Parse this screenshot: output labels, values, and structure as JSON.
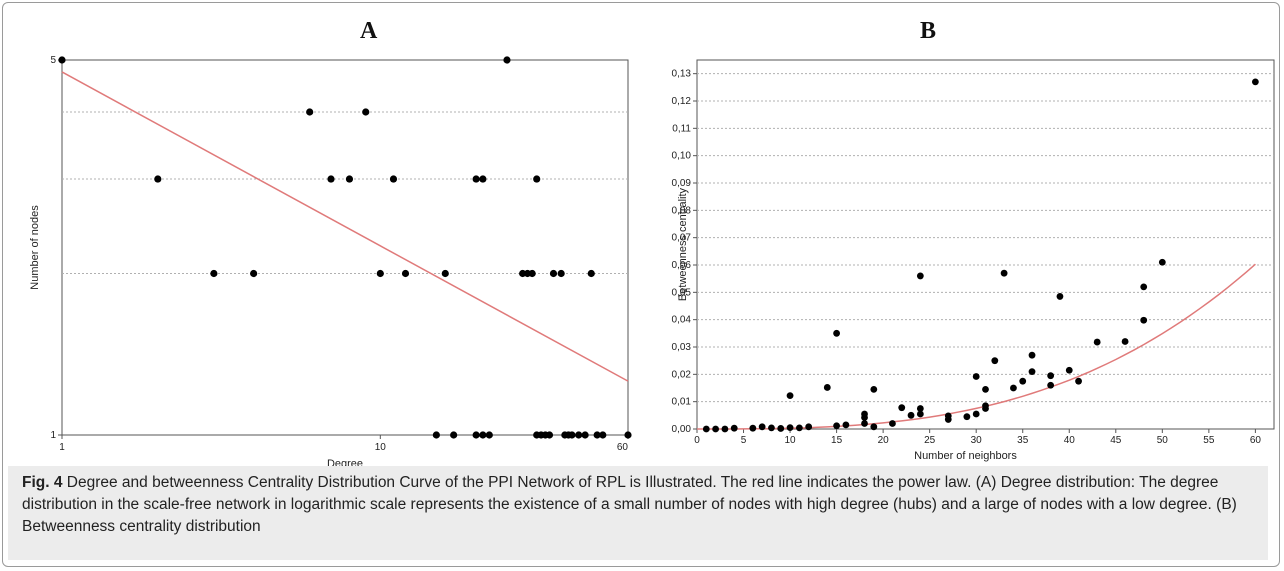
{
  "figure": {
    "panel_a_letter": "A",
    "panel_b_letter": "B",
    "caption_label": "Fig. 4",
    "caption_text": " Degree and betweenness Centrality Distribution Curve of the PPI Network of RPL is Illustrated. The red line indicates the power law. (A) Degree distribution: The degree distribution in the scale-free network in logarithmic scale represents the existence of a small number of nodes with high degree (hubs) and a large of nodes with a low degree. (B) Betweenness centrality distribution"
  },
  "colors": {
    "point": "#000000",
    "fit_line": "#e07a7a",
    "grid": "#b0b0b0",
    "axis": "#555555"
  },
  "chart_data": [
    {
      "type": "scatter",
      "panel": "A",
      "xlabel": "Degree",
      "ylabel": "Number of nodes",
      "x_scale": "log",
      "y_scale": "log",
      "xlim": [
        1,
        60
      ],
      "ylim": [
        1,
        5
      ],
      "x_ticks": [
        1,
        10,
        60
      ],
      "y_ticks": [
        1,
        5
      ],
      "grid": "horizontal dotted",
      "points": [
        {
          "x": 1,
          "y": 5
        },
        {
          "x": 2,
          "y": 3
        },
        {
          "x": 3,
          "y": 2
        },
        {
          "x": 4,
          "y": 2
        },
        {
          "x": 6,
          "y": 4
        },
        {
          "x": 7,
          "y": 3
        },
        {
          "x": 8,
          "y": 3
        },
        {
          "x": 9,
          "y": 4
        },
        {
          "x": 10,
          "y": 2
        },
        {
          "x": 11,
          "y": 3
        },
        {
          "x": 12,
          "y": 2
        },
        {
          "x": 15,
          "y": 1
        },
        {
          "x": 16,
          "y": 2
        },
        {
          "x": 17,
          "y": 1
        },
        {
          "x": 20,
          "y": 1
        },
        {
          "x": 20,
          "y": 3
        },
        {
          "x": 21,
          "y": 1
        },
        {
          "x": 21,
          "y": 3
        },
        {
          "x": 22,
          "y": 1
        },
        {
          "x": 25,
          "y": 5
        },
        {
          "x": 28,
          "y": 2
        },
        {
          "x": 29,
          "y": 2
        },
        {
          "x": 30,
          "y": 2
        },
        {
          "x": 31,
          "y": 3
        },
        {
          "x": 31,
          "y": 1
        },
        {
          "x": 32,
          "y": 1
        },
        {
          "x": 33,
          "y": 1
        },
        {
          "x": 34,
          "y": 1
        },
        {
          "x": 35,
          "y": 2
        },
        {
          "x": 37,
          "y": 2
        },
        {
          "x": 38,
          "y": 1
        },
        {
          "x": 39,
          "y": 1
        },
        {
          "x": 40,
          "y": 1
        },
        {
          "x": 42,
          "y": 1
        },
        {
          "x": 44,
          "y": 1
        },
        {
          "x": 46,
          "y": 2
        },
        {
          "x": 48,
          "y": 1
        },
        {
          "x": 50,
          "y": 1
        },
        {
          "x": 60,
          "y": 1
        }
      ],
      "fit_line": {
        "x": [
          1,
          60
        ],
        "y": [
          4.75,
          1.26
        ]
      }
    },
    {
      "type": "scatter",
      "panel": "B",
      "xlabel": "Number of neighbors",
      "ylabel": "Betweenness centrality",
      "xlim": [
        0,
        62
      ],
      "ylim": [
        0,
        0.135
      ],
      "x_ticks": [
        0,
        5,
        10,
        15,
        20,
        25,
        30,
        35,
        40,
        45,
        50,
        55,
        60
      ],
      "y_ticks": [
        0,
        0.01,
        0.02,
        0.03,
        0.04,
        0.05,
        0.06,
        0.07,
        0.08,
        0.09,
        0.1,
        0.11,
        0.12,
        0.13
      ],
      "y_tick_labels": [
        "0,00",
        "0,01",
        "0,02",
        "0,03",
        "0,04",
        "0,05",
        "0,06",
        "0,07",
        "0,08",
        "0,09",
        "0,10",
        "0,11",
        "0,12",
        "0,13"
      ],
      "grid": "horizontal dotted",
      "points": [
        {
          "x": 1,
          "y": 0.0
        },
        {
          "x": 2,
          "y": 0.0
        },
        {
          "x": 3,
          "y": 0.0
        },
        {
          "x": 4,
          "y": 0.0003
        },
        {
          "x": 6,
          "y": 0.0003
        },
        {
          "x": 7,
          "y": 0.0008
        },
        {
          "x": 8,
          "y": 0.0004
        },
        {
          "x": 9,
          "y": 0.0002
        },
        {
          "x": 10,
          "y": 0.0005
        },
        {
          "x": 10,
          "y": 0.0122
        },
        {
          "x": 11,
          "y": 0.0004
        },
        {
          "x": 12,
          "y": 0.0008
        },
        {
          "x": 14,
          "y": 0.0152
        },
        {
          "x": 15,
          "y": 0.035
        },
        {
          "x": 15,
          "y": 0.0012
        },
        {
          "x": 16,
          "y": 0.0015
        },
        {
          "x": 18,
          "y": 0.0055
        },
        {
          "x": 18,
          "y": 0.0042
        },
        {
          "x": 18,
          "y": 0.002
        },
        {
          "x": 19,
          "y": 0.0145
        },
        {
          "x": 19,
          "y": 0.0008
        },
        {
          "x": 21,
          "y": 0.002
        },
        {
          "x": 22,
          "y": 0.0078
        },
        {
          "x": 23,
          "y": 0.005
        },
        {
          "x": 24,
          "y": 0.0075
        },
        {
          "x": 24,
          "y": 0.0055
        },
        {
          "x": 24,
          "y": 0.056
        },
        {
          "x": 27,
          "y": 0.0048
        },
        {
          "x": 27,
          "y": 0.0035
        },
        {
          "x": 29,
          "y": 0.0045
        },
        {
          "x": 30,
          "y": 0.0055
        },
        {
          "x": 30,
          "y": 0.0192
        },
        {
          "x": 31,
          "y": 0.0145
        },
        {
          "x": 31,
          "y": 0.0085
        },
        {
          "x": 31,
          "y": 0.0075
        },
        {
          "x": 32,
          "y": 0.025
        },
        {
          "x": 33,
          "y": 0.057
        },
        {
          "x": 34,
          "y": 0.015
        },
        {
          "x": 35,
          "y": 0.0175
        },
        {
          "x": 36,
          "y": 0.027
        },
        {
          "x": 36,
          "y": 0.021
        },
        {
          "x": 38,
          "y": 0.0195
        },
        {
          "x": 38,
          "y": 0.016
        },
        {
          "x": 39,
          "y": 0.0485
        },
        {
          "x": 40,
          "y": 0.0215
        },
        {
          "x": 41,
          "y": 0.0175
        },
        {
          "x": 43,
          "y": 0.0318
        },
        {
          "x": 46,
          "y": 0.032
        },
        {
          "x": 48,
          "y": 0.052
        },
        {
          "x": 48,
          "y": 0.0398
        },
        {
          "x": 50,
          "y": 0.061
        },
        {
          "x": 60,
          "y": 0.127
        }
      ],
      "fit_line": {
        "x0": 0,
        "x1": 60,
        "y_at_x1": 0.0603,
        "exponent": 3
      }
    }
  ]
}
